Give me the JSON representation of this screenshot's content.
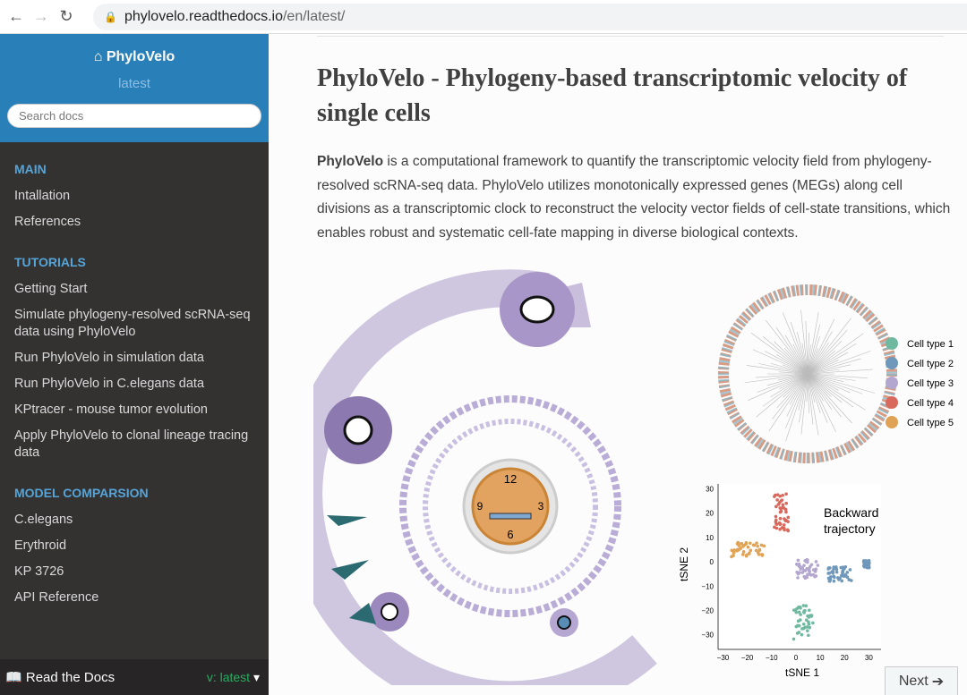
{
  "browser": {
    "url_host": "phylovelo.readthedocs.io",
    "url_path": "/en/latest/"
  },
  "sidebar": {
    "title": "PhyloVelo",
    "version": "latest",
    "search_placeholder": "Search docs",
    "sections": [
      {
        "caption": "MAIN",
        "items": [
          "Intallation",
          "References"
        ]
      },
      {
        "caption": "TUTORIALS",
        "items": [
          "Getting Start",
          "Simulate phylogeny-resolved scRNA-seq data using PhyloVelo",
          "Run PhyloVelo in simulation data",
          "Run PhyloVelo in C.elegans data",
          "KPtracer - mouse tumor evolution",
          "Apply PhyloVelo to clonal lineage tracing data"
        ]
      },
      {
        "caption": "MODEL COMPARSION",
        "items": [
          "C.elegans",
          "Erythroid",
          "KP 3726",
          "API Reference"
        ]
      }
    ],
    "footer": {
      "label": "Read the Docs",
      "version": "v: latest"
    }
  },
  "main": {
    "title": "PhyloVelo - Phylogeny-based transcriptomic velocity of single cells",
    "intro_bold": "PhyloVelo",
    "intro_rest": " is a computational framework to quantify the transcriptomic velocity field from phylogeny-resolved scRNA-seq data. PhyloVelo utilizes monotonically expressed genes (MEGs) along cell divisions as a transcriptomic clock to reconstruct the velocity vector fields of cell-state transitions, which enables robust and systematic cell-fate mapping in diverse biological contexts.",
    "figure": {
      "clock": [
        "12",
        "3",
        "6",
        "9"
      ],
      "legend": [
        {
          "label": "Cell type 1",
          "color": "#6fb9a0"
        },
        {
          "label": "Cell type 2",
          "color": "#6f98bb"
        },
        {
          "label": "Cell type 3",
          "color": "#b3a6cf"
        },
        {
          "label": "Cell type 4",
          "color": "#d9695c"
        },
        {
          "label": "Cell type 5",
          "color": "#e0a255"
        }
      ],
      "tsne": {
        "annotation": [
          "Backward",
          "trajectory"
        ],
        "xlabel": "tSNE 1",
        "ylabel": "tSNE 2",
        "xticks": [
          "−30",
          "−20",
          "−10",
          "0",
          "10",
          "20",
          "30"
        ],
        "yticks": [
          "30",
          "20",
          "10",
          "0",
          "−10",
          "−20",
          "−30"
        ]
      }
    },
    "next_label": "Next"
  }
}
